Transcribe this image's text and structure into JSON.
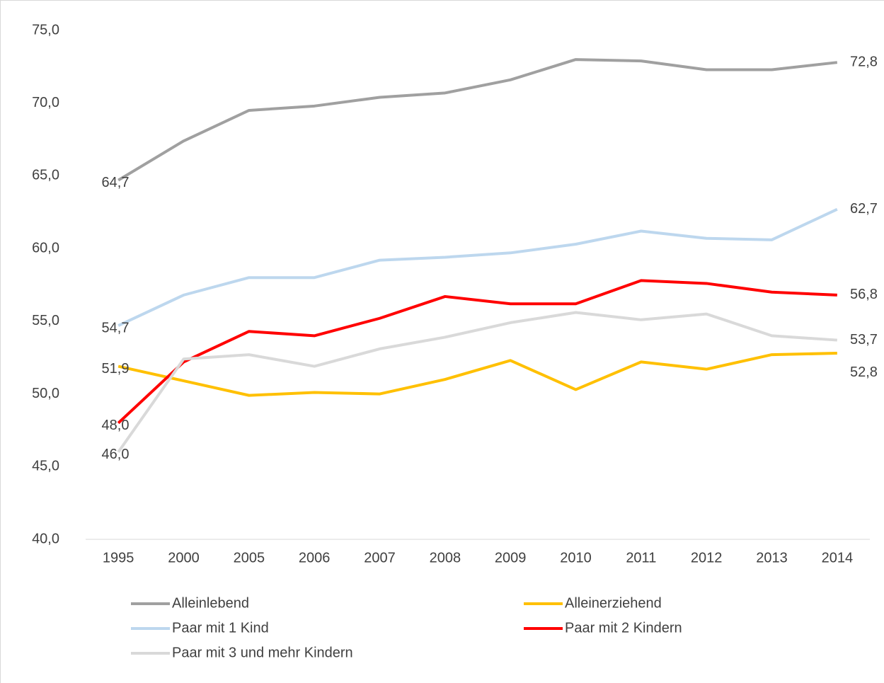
{
  "chart_data": {
    "type": "line",
    "categories": [
      "1995",
      "2000",
      "2005",
      "2006",
      "2007",
      "2008",
      "2009",
      "2010",
      "2011",
      "2012",
      "2013",
      "2014"
    ],
    "ylim": [
      40,
      75
    ],
    "yticks": [
      {
        "value": 40,
        "label": "40,0"
      },
      {
        "value": 45,
        "label": "45,0"
      },
      {
        "value": 50,
        "label": "50,0"
      },
      {
        "value": 55,
        "label": "55,0"
      },
      {
        "value": 60,
        "label": "60,0"
      },
      {
        "value": 65,
        "label": "65,0"
      },
      {
        "value": 70,
        "label": "70,0"
      },
      {
        "value": 75,
        "label": "75,0"
      }
    ],
    "grid": false,
    "legend": "bottom",
    "series": [
      {
        "name": "Alleinlebend",
        "color": "#a0a0a0",
        "values": [
          64.7,
          67.4,
          69.5,
          69.8,
          70.4,
          70.7,
          71.6,
          73.0,
          72.9,
          72.3,
          72.3,
          72.8
        ],
        "value_labels": [
          "64,7",
          null,
          null,
          null,
          null,
          null,
          null,
          null,
          null,
          null,
          null,
          "72,8"
        ]
      },
      {
        "name": "Alleinerziehend",
        "color": "#ffc000",
        "values": [
          51.9,
          50.9,
          49.9,
          50.1,
          50.0,
          51.0,
          52.3,
          50.3,
          52.2,
          51.7,
          52.7,
          52.8
        ],
        "value_labels": [
          "51,9",
          null,
          null,
          null,
          null,
          null,
          null,
          null,
          null,
          null,
          null,
          "52,8"
        ]
      },
      {
        "name": "Paar mit 1 Kind",
        "color": "#bdd7ee",
        "values": [
          54.7,
          56.8,
          58.0,
          58.0,
          59.2,
          59.4,
          59.7,
          60.3,
          61.2,
          60.7,
          60.6,
          62.7
        ],
        "value_labels": [
          "54,7",
          null,
          null,
          null,
          null,
          null,
          null,
          null,
          null,
          null,
          null,
          "62,7"
        ]
      },
      {
        "name": "Paar mit 2 Kindern",
        "color": "#ff0000",
        "values": [
          48.0,
          52.2,
          54.3,
          54.0,
          55.2,
          56.7,
          56.2,
          56.2,
          57.8,
          57.6,
          57.0,
          56.8
        ],
        "value_labels": [
          "48,0",
          null,
          null,
          null,
          null,
          null,
          null,
          null,
          null,
          null,
          null,
          "56,8"
        ]
      },
      {
        "name": "Paar mit 3 und mehr Kindern",
        "color": "#d9d9d9",
        "values": [
          46.0,
          52.4,
          52.7,
          51.9,
          53.1,
          53.9,
          54.9,
          55.6,
          55.1,
          55.5,
          54.0,
          53.7
        ],
        "value_labels": [
          "46,0",
          null,
          null,
          null,
          null,
          null,
          null,
          null,
          null,
          null,
          null,
          "53,7"
        ]
      }
    ]
  }
}
